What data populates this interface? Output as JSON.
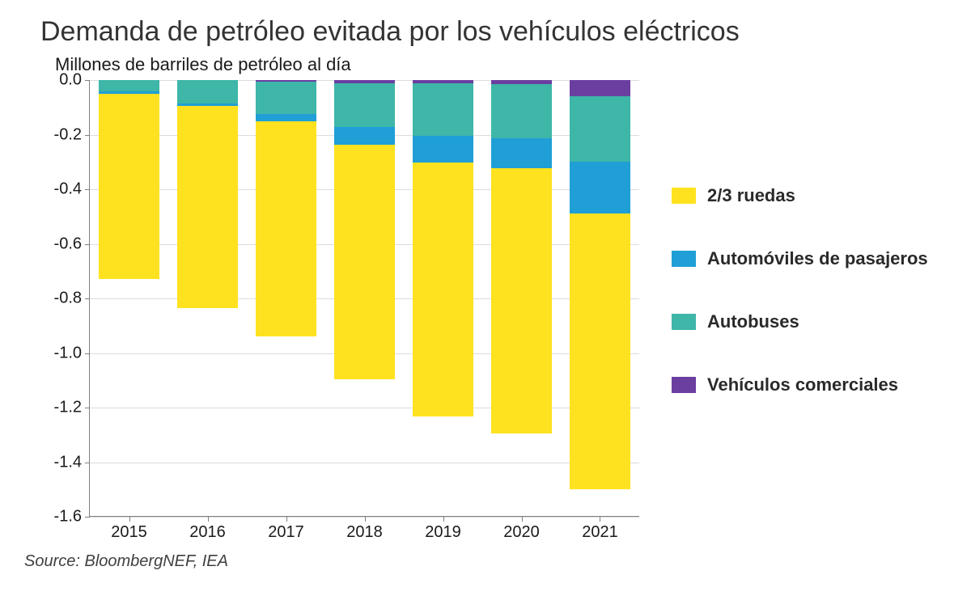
{
  "chart": {
    "type": "stacked-bar",
    "title": "Demanda de petróleo evitada por los vehículos eléctricos",
    "subtitle": "Millones de barriles de petróleo al día",
    "source": "Source: BloombergNEF, IEA",
    "background_color": "#ffffff",
    "grid_color": "#dcdcdc",
    "axis_color": "#808080",
    "text_color": "#1a1a1a",
    "title_fontsize": 34,
    "subtitle_fontsize": 22,
    "tick_fontsize": 20,
    "legend_fontsize": 22,
    "ylim": [
      -1.6,
      0.0
    ],
    "ytick_step": 0.2,
    "yticks": [
      0.0,
      -0.2,
      -0.4,
      -0.6,
      -0.8,
      -1.0,
      -1.2,
      -1.4,
      -1.6
    ],
    "ytick_labels": [
      "0.0",
      "-0.2",
      "-0.4",
      "-0.6",
      "-0.8",
      "-1.0",
      "-1.2",
      "-1.4",
      "-1.6"
    ],
    "categories": [
      "2015",
      "2016",
      "2017",
      "2018",
      "2019",
      "2020",
      "2021"
    ],
    "bar_width": 0.78,
    "series": [
      {
        "key": "commercial",
        "label": "Vehículos comerciales",
        "color": "#6a3fa0",
        "values": [
          -0.0,
          -0.0,
          -0.005,
          -0.012,
          -0.013,
          -0.014,
          -0.06
        ]
      },
      {
        "key": "buses",
        "label": "Autobuses",
        "color": "#3eb6a8",
        "values": [
          -0.04,
          -0.085,
          -0.12,
          -0.16,
          -0.19,
          -0.2,
          -0.24
        ]
      },
      {
        "key": "passenger",
        "label": "Automóviles de pasajeros",
        "color": "#1f9fd6",
        "values": [
          -0.01,
          -0.01,
          -0.025,
          -0.065,
          -0.1,
          -0.11,
          -0.19
        ]
      },
      {
        "key": "two_three_wheelers",
        "label": "2/3 ruedas",
        "color": "#ffe21f",
        "values": [
          -0.68,
          -0.74,
          -0.79,
          -0.86,
          -0.93,
          -0.97,
          -1.01
        ]
      }
    ],
    "legend_order": [
      "two_three_wheelers",
      "passenger",
      "buses",
      "commercial"
    ]
  }
}
